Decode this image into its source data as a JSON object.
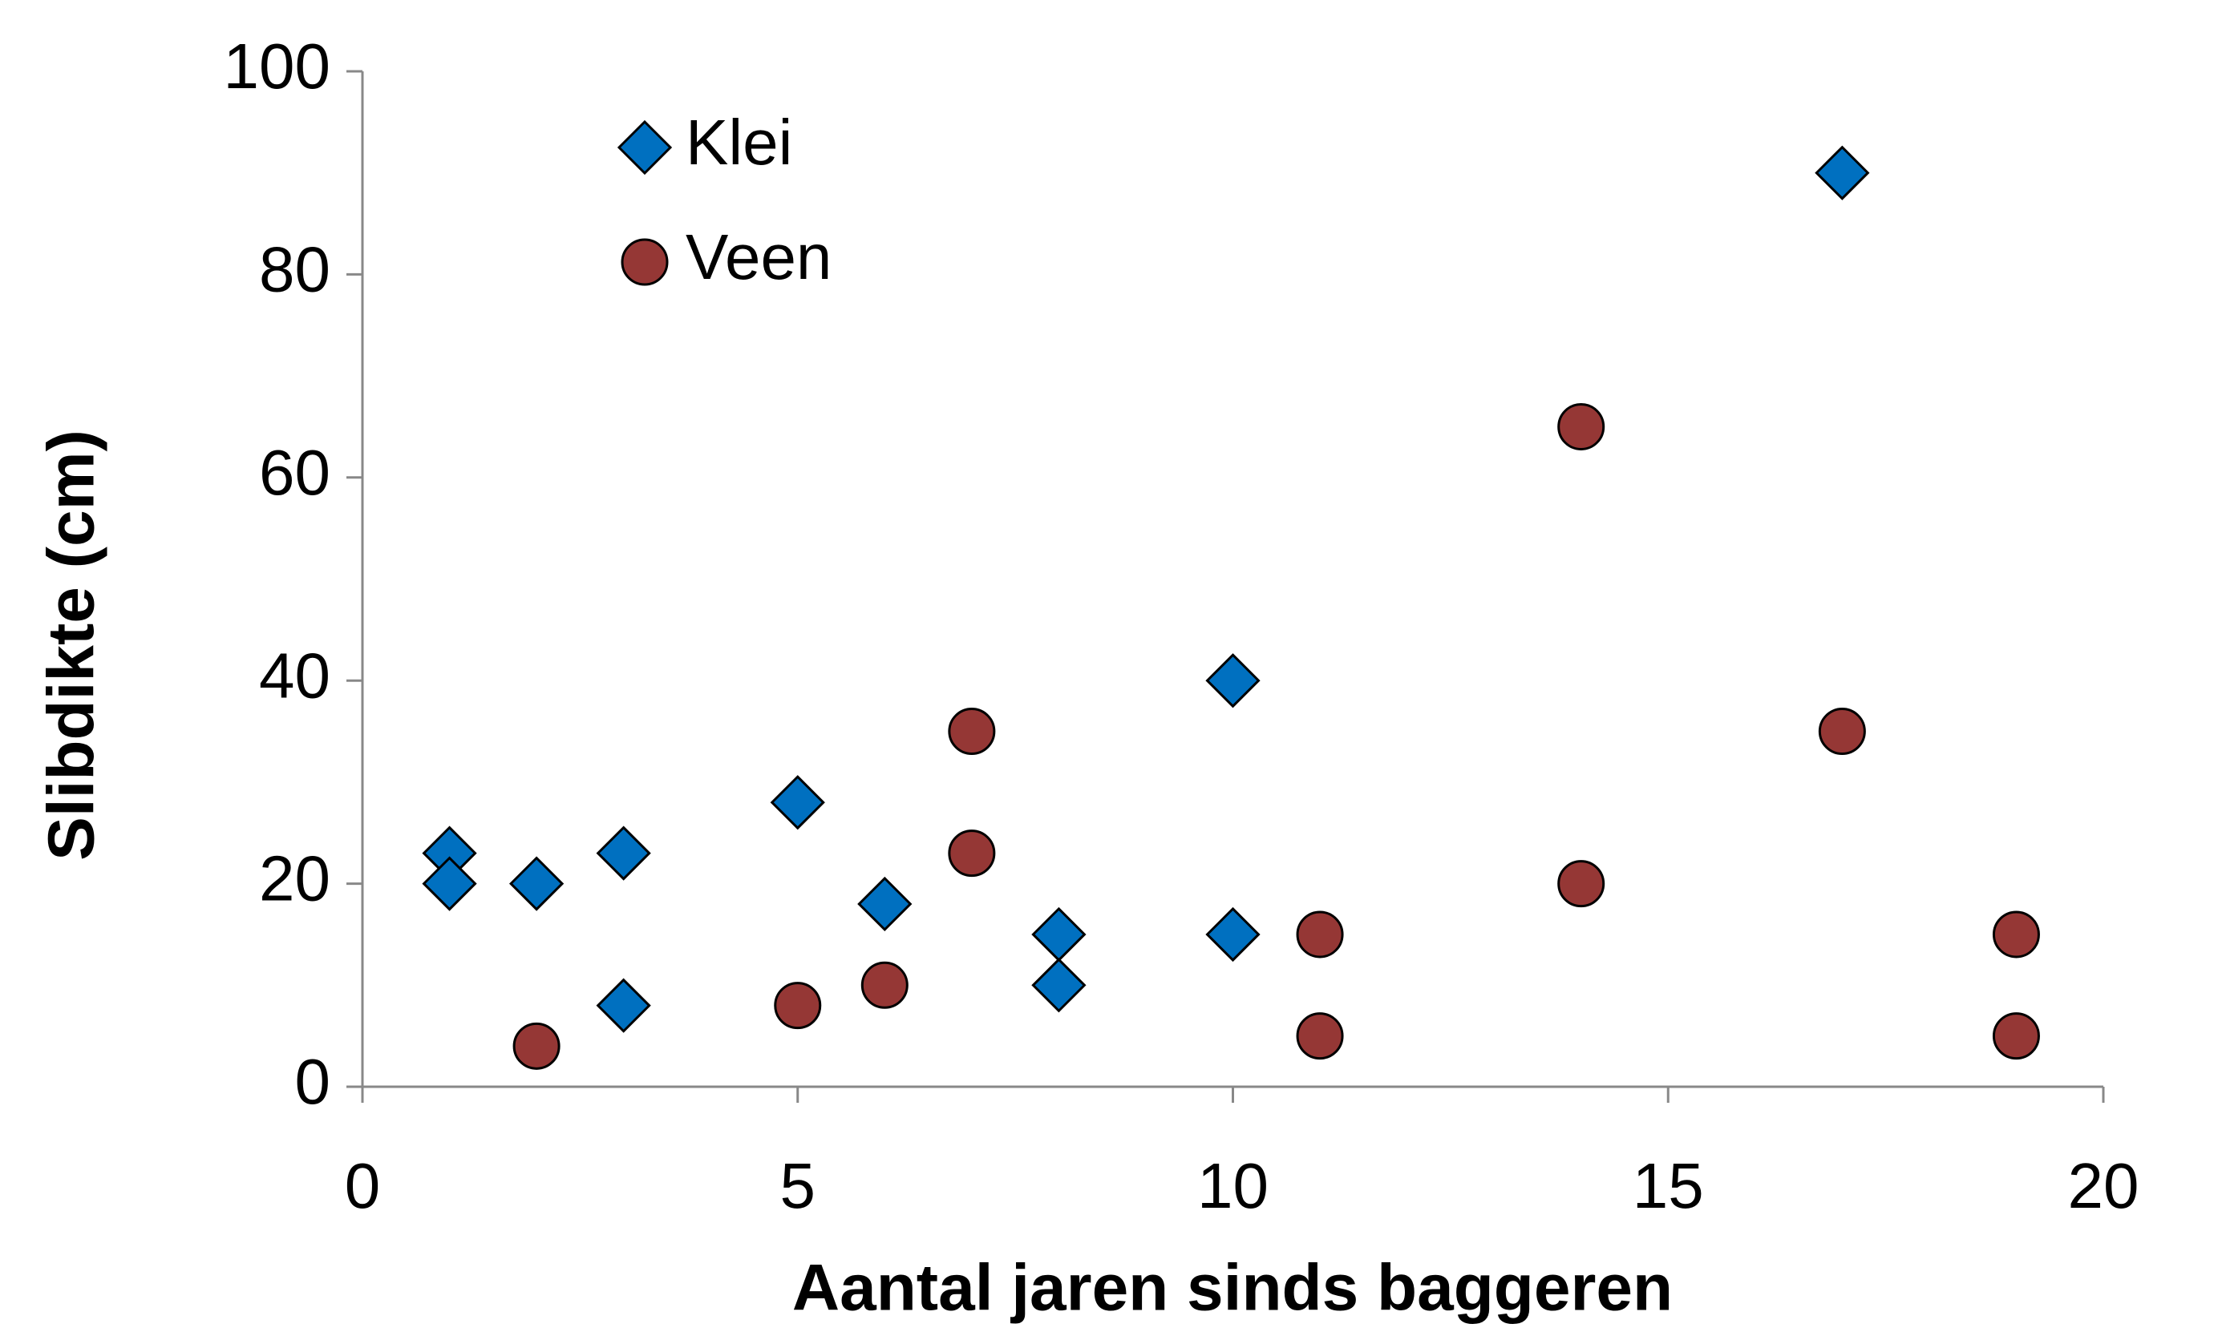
{
  "chart_data": {
    "type": "scatter",
    "x_label": "Aantal jaren sinds baggeren",
    "y_label": "Slibdikte (cm)",
    "xlim": [
      0,
      20
    ],
    "xticks": [
      0,
      5,
      10,
      15,
      20
    ],
    "ylim": [
      0,
      100
    ],
    "yticks": [
      0,
      20,
      40,
      60,
      80,
      100
    ],
    "legend": "top-left",
    "series": [
      {
        "name": "Klei",
        "color": "#0070c0",
        "marker": "diamond",
        "x": [
          1,
          1,
          2,
          3,
          3,
          5,
          6,
          8,
          8,
          10,
          10,
          17
        ],
        "values": [
          23,
          20,
          20,
          23,
          8,
          28,
          18,
          15,
          10,
          40,
          15,
          90
        ]
      },
      {
        "name": "Veen",
        "color": "#953735",
        "marker": "circle",
        "x": [
          2,
          5,
          6,
          7,
          7,
          11,
          11,
          14,
          14,
          17,
          19,
          19
        ],
        "values": [
          4,
          8,
          10,
          35,
          23,
          15,
          5,
          65,
          20,
          35,
          15,
          5
        ]
      }
    ]
  }
}
